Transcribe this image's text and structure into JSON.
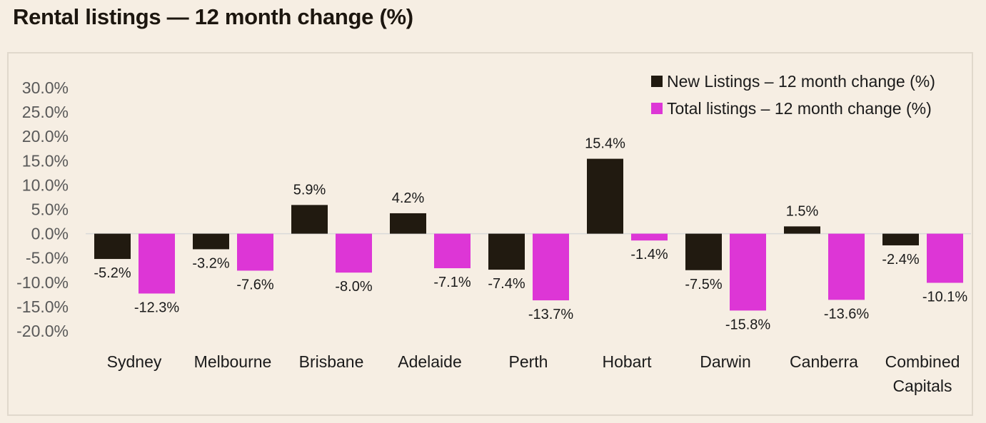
{
  "title": "Rental listings — 12 month change (%)",
  "colors": {
    "new": "#211a10",
    "total": "#dd36d6",
    "background": "#f6eee3"
  },
  "chart_data": {
    "type": "bar",
    "title": "Rental listings — 12 month change (%)",
    "categories": [
      [
        "Sydney"
      ],
      [
        "Melbourne"
      ],
      [
        "Brisbane"
      ],
      [
        "Adelaide"
      ],
      [
        "Perth"
      ],
      [
        "Hobart"
      ],
      [
        "Darwin"
      ],
      [
        "Canberra"
      ],
      [
        "Combined",
        "Capitals"
      ]
    ],
    "series": [
      {
        "name": "New Listings – 12 month change (%)",
        "color": "#211a10",
        "values": [
          -5.2,
          -3.2,
          5.9,
          4.2,
          -7.4,
          15.4,
          -7.5,
          1.5,
          -2.4
        ],
        "labels": [
          "-5.2%",
          "-3.2%",
          "5.9%",
          "4.2%",
          "-7.4%",
          "15.4%",
          "-7.5%",
          "1.5%",
          "-2.4%"
        ]
      },
      {
        "name": "Total listings – 12 month change (%)",
        "color": "#dd36d6",
        "values": [
          -12.3,
          -7.6,
          -8.0,
          -7.1,
          -13.7,
          -1.4,
          -15.8,
          -13.6,
          -10.1
        ],
        "labels": [
          "-12.3%",
          "-7.6%",
          "-8.0%",
          "-7.1%",
          "-13.7%",
          "-1.4%",
          "-15.8%",
          "-13.6%",
          "-10.1%"
        ]
      }
    ],
    "ylim": [
      -20,
      30
    ],
    "yticks": [
      "30.0%",
      "25.0%",
      "20.0%",
      "15.0%",
      "10.0%",
      "5.0%",
      "0.0%",
      "-5.0%",
      "-10.0%",
      "-15.0%",
      "-20.0%"
    ],
    "ytick_values": [
      30,
      25,
      20,
      15,
      10,
      5,
      0,
      -5,
      -10,
      -15,
      -20
    ],
    "xlabel": "",
    "ylabel": "",
    "grid": false,
    "legend": "top-right"
  }
}
